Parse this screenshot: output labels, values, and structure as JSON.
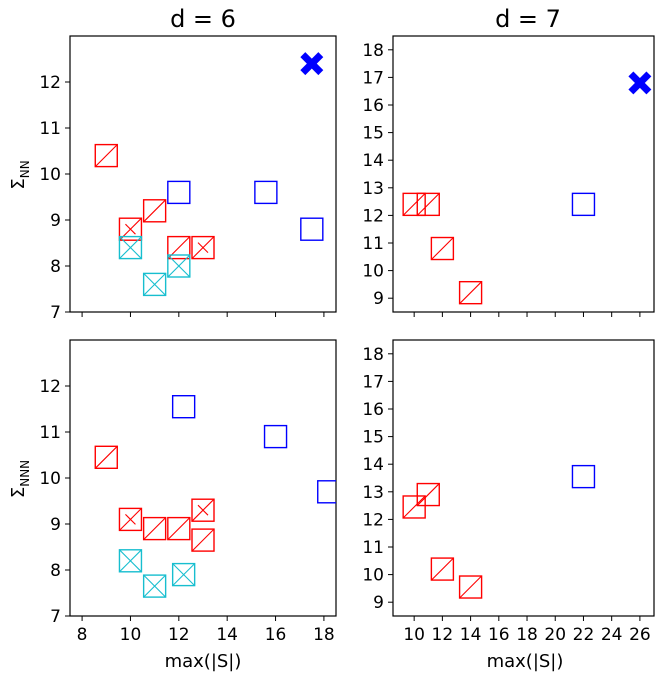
{
  "chart_data": {
    "type": "scatter",
    "column_titles": [
      "d = 6",
      "d = 7"
    ],
    "xlabel": "max(|S|)",
    "row_ylabels": [
      {
        "base": "Σ",
        "sub": "NN"
      },
      {
        "base": "Σ",
        "sub": "NNN"
      }
    ],
    "colors": {
      "blue": "#0000ff",
      "red": "#ff0000",
      "cyan": "#17becf"
    },
    "panels": [
      {
        "name": "top-left",
        "xlim": [
          7.5,
          18.5
        ],
        "ylim": [
          7,
          13.0
        ],
        "xticks": [
          8,
          10,
          12,
          14,
          16,
          18
        ],
        "xticklabels": [
          "",
          "",
          "",
          "",
          "",
          ""
        ],
        "yticks": [
          7,
          8,
          9,
          10,
          11,
          12
        ],
        "yticklabels": [
          "7",
          "8",
          "9",
          "10",
          "11",
          "12"
        ],
        "points": [
          {
            "x": 17.5,
            "y": 12.4,
            "marker": "X",
            "color": "blue"
          },
          {
            "x": 12.0,
            "y": 9.6,
            "marker": "square",
            "color": "blue"
          },
          {
            "x": 15.6,
            "y": 9.6,
            "marker": "square",
            "color": "blue"
          },
          {
            "x": 17.5,
            "y": 8.8,
            "marker": "square",
            "color": "blue"
          },
          {
            "x": 9.0,
            "y": 10.4,
            "marker": "square-slash",
            "color": "red"
          },
          {
            "x": 11.0,
            "y": 9.2,
            "marker": "square-slash",
            "color": "red"
          },
          {
            "x": 10.0,
            "y": 8.8,
            "marker": "square-slash-x",
            "color": "red"
          },
          {
            "x": 12.0,
            "y": 8.4,
            "marker": "square-slash",
            "color": "red"
          },
          {
            "x": 13.0,
            "y": 8.4,
            "marker": "square-slash-x",
            "color": "red"
          },
          {
            "x": 10.0,
            "y": 8.4,
            "marker": "square-x",
            "color": "cyan"
          },
          {
            "x": 12.0,
            "y": 8.0,
            "marker": "square-x",
            "color": "cyan"
          },
          {
            "x": 11.0,
            "y": 7.6,
            "marker": "square-x",
            "color": "cyan"
          }
        ]
      },
      {
        "name": "top-right",
        "xlim": [
          8.5,
          27.0
        ],
        "ylim": [
          8.5,
          18.5
        ],
        "xticks": [
          10,
          12,
          14,
          16,
          18,
          20,
          22,
          24,
          26
        ],
        "xticklabels": [
          "",
          "",
          "",
          "",
          "",
          "",
          "",
          "",
          ""
        ],
        "yticks": [
          9,
          10,
          11,
          12,
          13,
          14,
          15,
          16,
          17,
          18
        ],
        "yticklabels": [
          "9",
          "10",
          "11",
          "12",
          "13",
          "14",
          "15",
          "16",
          "17",
          "18"
        ],
        "points": [
          {
            "x": 26.0,
            "y": 16.8,
            "marker": "X",
            "color": "blue"
          },
          {
            "x": 22.0,
            "y": 12.4,
            "marker": "square",
            "color": "blue"
          },
          {
            "x": 10.0,
            "y": 12.4,
            "marker": "square-slash",
            "color": "red"
          },
          {
            "x": 11.0,
            "y": 12.4,
            "marker": "square-slash",
            "color": "red"
          },
          {
            "x": 12.0,
            "y": 10.8,
            "marker": "square-slash",
            "color": "red"
          },
          {
            "x": 14.0,
            "y": 9.2,
            "marker": "square-slash",
            "color": "red"
          }
        ]
      },
      {
        "name": "bottom-left",
        "xlim": [
          7.5,
          18.5
        ],
        "ylim": [
          7,
          13.0
        ],
        "xticks": [
          8,
          10,
          12,
          14,
          16,
          18
        ],
        "xticklabels": [
          "8",
          "10",
          "12",
          "14",
          "16",
          "18"
        ],
        "yticks": [
          7,
          8,
          9,
          10,
          11,
          12
        ],
        "yticklabels": [
          "7",
          "8",
          "9",
          "10",
          "11",
          "12"
        ],
        "points": [
          {
            "x": 12.2,
            "y": 11.55,
            "marker": "square",
            "color": "blue"
          },
          {
            "x": 16.0,
            "y": 10.9,
            "marker": "square",
            "color": "blue"
          },
          {
            "x": 18.2,
            "y": 9.7,
            "marker": "square",
            "color": "blue"
          },
          {
            "x": 9.0,
            "y": 10.45,
            "marker": "square-slash",
            "color": "red"
          },
          {
            "x": 10.0,
            "y": 9.1,
            "marker": "square-slash-x",
            "color": "red"
          },
          {
            "x": 11.0,
            "y": 8.9,
            "marker": "square-slash",
            "color": "red"
          },
          {
            "x": 12.0,
            "y": 8.9,
            "marker": "square-slash",
            "color": "red"
          },
          {
            "x": 13.0,
            "y": 9.3,
            "marker": "square-slash-x",
            "color": "red"
          },
          {
            "x": 13.0,
            "y": 8.65,
            "marker": "square-slash",
            "color": "red"
          },
          {
            "x": 10.0,
            "y": 8.2,
            "marker": "square-x",
            "color": "cyan"
          },
          {
            "x": 11.0,
            "y": 7.65,
            "marker": "square-x",
            "color": "cyan"
          },
          {
            "x": 12.2,
            "y": 7.9,
            "marker": "square-x",
            "color": "cyan"
          }
        ]
      },
      {
        "name": "bottom-right",
        "xlim": [
          8.5,
          27.0
        ],
        "ylim": [
          8.5,
          18.5
        ],
        "xticks": [
          10,
          12,
          14,
          16,
          18,
          20,
          22,
          24,
          26
        ],
        "xticklabels": [
          "10",
          "12",
          "14",
          "16",
          "18",
          "20",
          "22",
          "24",
          "26"
        ],
        "yticks": [
          9,
          10,
          11,
          12,
          13,
          14,
          15,
          16,
          17,
          18
        ],
        "yticklabels": [
          "9",
          "10",
          "11",
          "12",
          "13",
          "14",
          "15",
          "16",
          "17",
          "18"
        ],
        "points": [
          {
            "x": 22.0,
            "y": 13.55,
            "marker": "square",
            "color": "blue"
          },
          {
            "x": 10.0,
            "y": 12.45,
            "marker": "square-slash",
            "color": "red"
          },
          {
            "x": 11.0,
            "y": 12.9,
            "marker": "square-slash",
            "color": "red"
          },
          {
            "x": 12.0,
            "y": 10.2,
            "marker": "square-slash",
            "color": "red"
          },
          {
            "x": 14.0,
            "y": 9.55,
            "marker": "square-slash",
            "color": "red"
          }
        ]
      }
    ]
  }
}
